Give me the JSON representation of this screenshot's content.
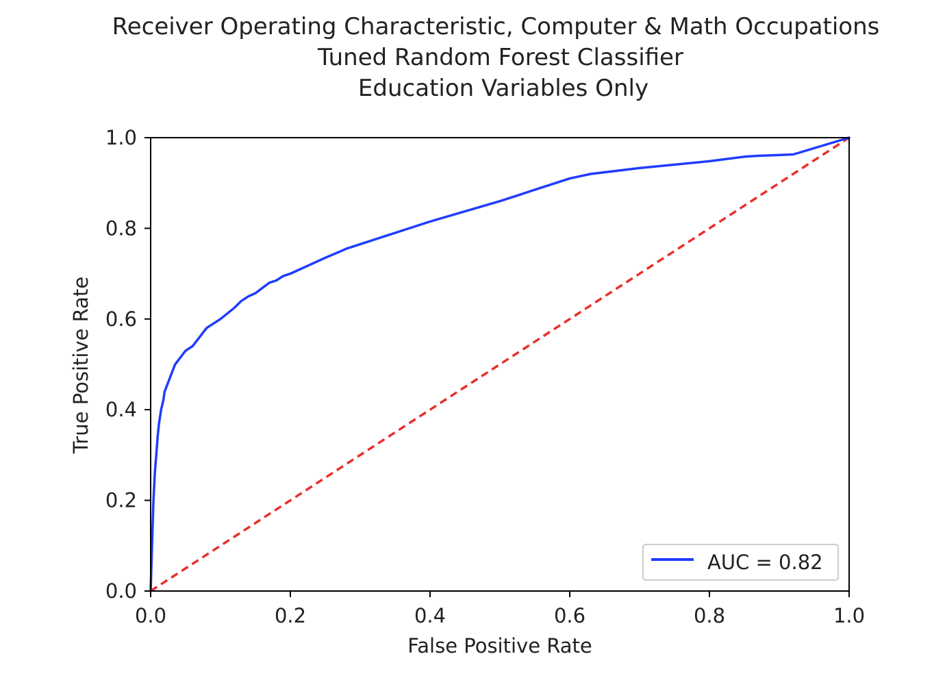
{
  "chart_data": {
    "type": "line",
    "title": [
      "Receiver Operating Characteristic, Computer & Math Occupations",
      "Tuned Random Forest Classifier",
      "Education Variables Only"
    ],
    "xlabel": "False Positive Rate",
    "ylabel": "True Positive Rate",
    "xlim": [
      0.0,
      1.0
    ],
    "ylim": [
      0.0,
      1.0
    ],
    "xticks": [
      "0.0",
      "0.2",
      "0.4",
      "0.6",
      "0.8",
      "1.0"
    ],
    "yticks": [
      "0.0",
      "0.2",
      "0.4",
      "0.6",
      "0.8",
      "1.0"
    ],
    "grid": false,
    "legend_position": "lower right",
    "series": [
      {
        "name": "AUC = 0.82",
        "color": "#1f3cff",
        "style": "solid",
        "x": [
          0.0,
          0.002,
          0.004,
          0.006,
          0.008,
          0.01,
          0.012,
          0.015,
          0.018,
          0.02,
          0.025,
          0.03,
          0.035,
          0.04,
          0.05,
          0.06,
          0.07,
          0.08,
          0.09,
          0.1,
          0.12,
          0.13,
          0.14,
          0.15,
          0.17,
          0.18,
          0.19,
          0.2,
          0.25,
          0.27,
          0.28,
          0.3,
          0.4,
          0.5,
          0.53,
          0.55,
          0.6,
          0.63,
          0.7,
          0.8,
          0.85,
          0.87,
          0.92,
          1.0
        ],
        "y": [
          0.0,
          0.1,
          0.2,
          0.26,
          0.3,
          0.34,
          0.37,
          0.4,
          0.42,
          0.44,
          0.46,
          0.48,
          0.5,
          0.51,
          0.53,
          0.54,
          0.56,
          0.58,
          0.59,
          0.6,
          0.625,
          0.64,
          0.65,
          0.657,
          0.68,
          0.685,
          0.695,
          0.7,
          0.735,
          0.748,
          0.755,
          0.765,
          0.815,
          0.86,
          0.875,
          0.885,
          0.91,
          0.92,
          0.933,
          0.948,
          0.958,
          0.96,
          0.963,
          1.0
        ]
      },
      {
        "name": "",
        "color": "#e8302b",
        "style": "dashed",
        "x": [
          0.0,
          1.0
        ],
        "y": [
          0.0,
          1.0
        ]
      }
    ],
    "legend_entries": [
      "AUC = 0.82"
    ]
  }
}
